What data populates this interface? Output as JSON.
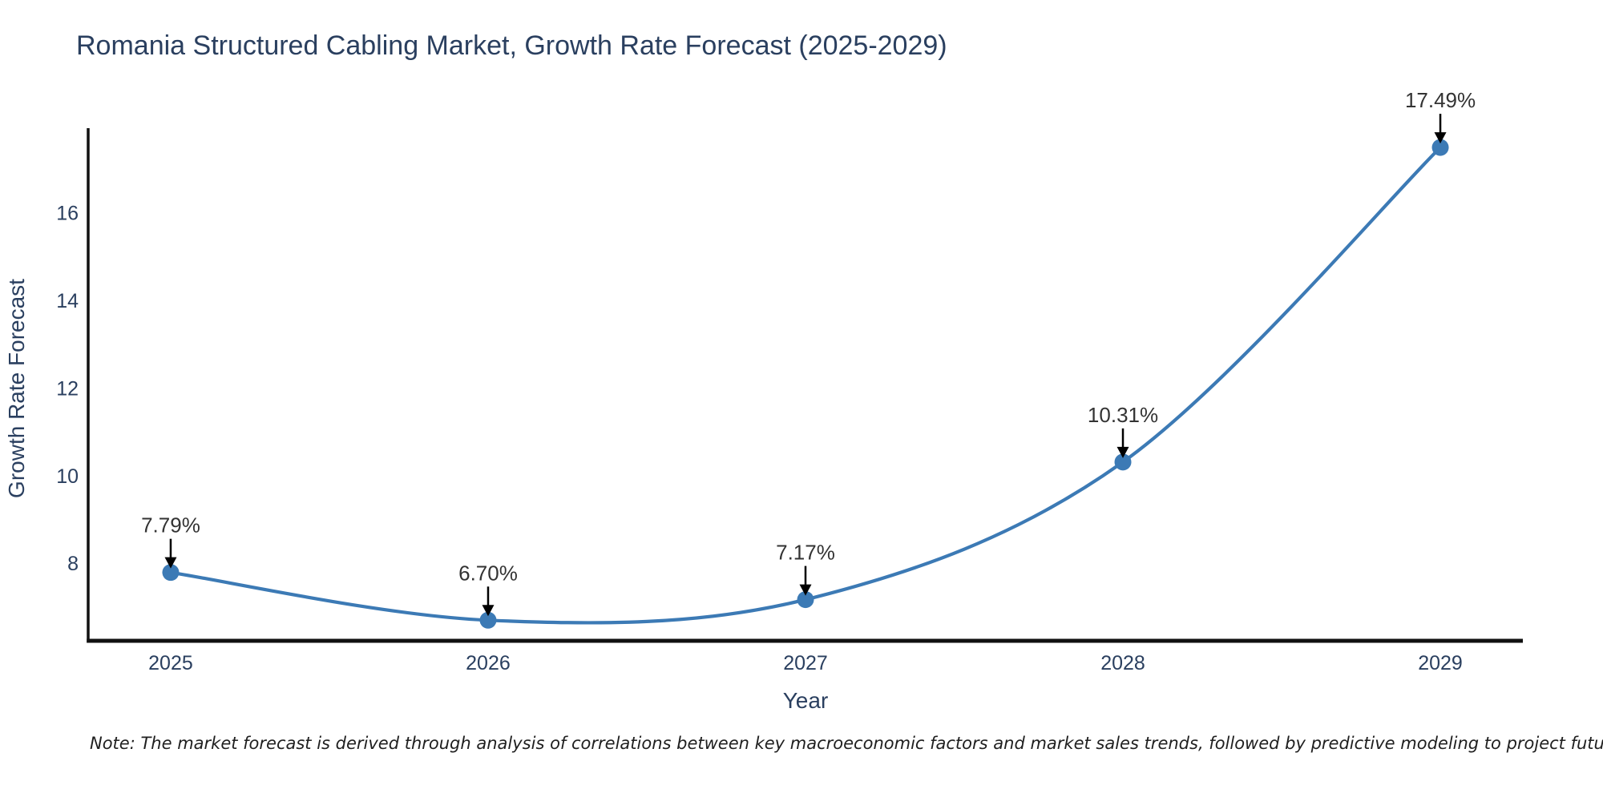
{
  "page": {
    "title": "Romania Structured Cabling Market, Growth Rate Forecast (2025-2029)",
    "note": "Note: The market forecast is derived through analysis of correlations between key macroeconomic factors and market sales trends, followed by predictive modeling to project future sales"
  },
  "chart_data": {
    "type": "line",
    "title": "Romania Structured Cabling Market, Growth Rate Forecast (2025-2029)",
    "xlabel": "Year",
    "ylabel": "Growth Rate Forecast",
    "categories": [
      2025,
      2026,
      2027,
      2028,
      2029
    ],
    "values": [
      7.79,
      6.7,
      7.17,
      10.31,
      17.49
    ],
    "point_labels": [
      "7.79%",
      "6.70%",
      "7.17%",
      "10.31%",
      "17.49%"
    ],
    "yticks": [
      8,
      10,
      12,
      14,
      16
    ],
    "ylim": [
      6.23,
      17.93
    ],
    "xlim": [
      2024.74,
      2029.26
    ],
    "grid": false,
    "legend_position": "none",
    "line_color": "#3c7ab5",
    "marker_color": "#3c7ab5",
    "axis_color": "#111111",
    "label_color": "#2a3f5f",
    "annotation_color": "#333333",
    "arrow_color": "#000000"
  }
}
